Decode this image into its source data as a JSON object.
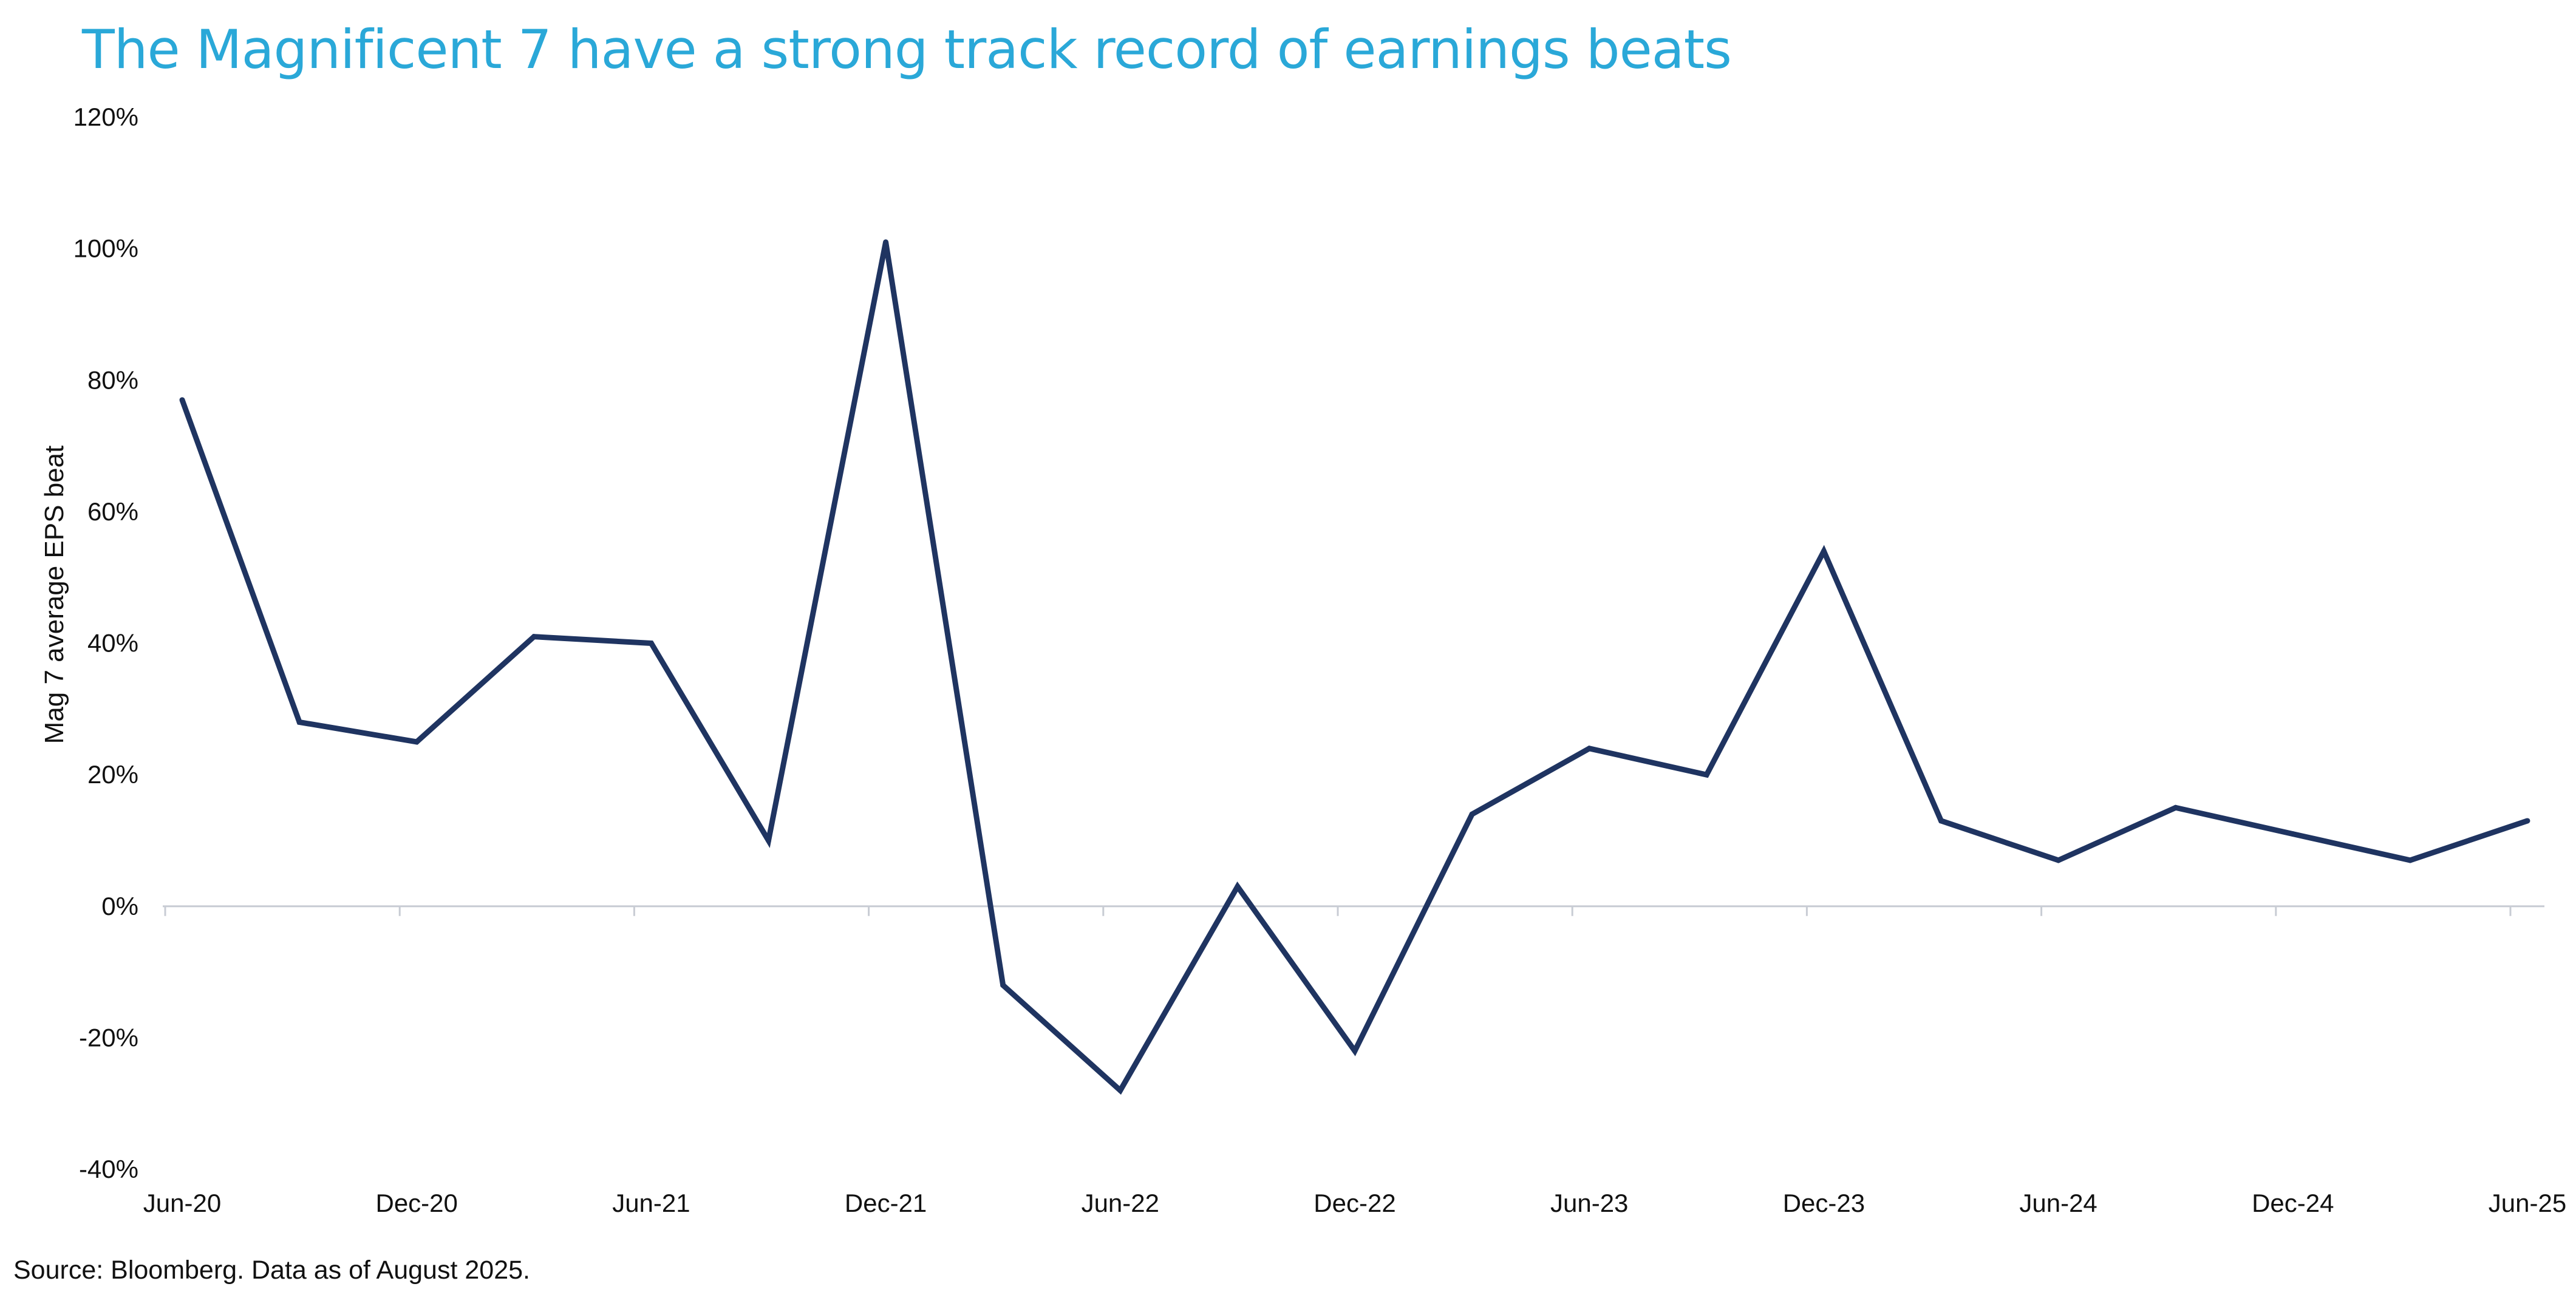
{
  "title": "The Magnificent 7 have a strong track record of earnings beats",
  "source": "Source: Bloomberg. Data as of August 2025.",
  "colors": {
    "title": "#2aa8d8",
    "line": "#1f3461",
    "axis": "#c8ccd4"
  },
  "chart_data": {
    "type": "line",
    "title": "The Magnificent 7 have a strong track record of earnings beats",
    "xlabel": "",
    "ylabel": "Mag 7 average EPS beat",
    "ylim": [
      -40,
      120
    ],
    "yticks": [
      -40,
      -20,
      0,
      20,
      40,
      60,
      80,
      100,
      120
    ],
    "ytick_labels": [
      "-40%",
      "-20%",
      "0%",
      "20%",
      "40%",
      "60%",
      "80%",
      "100%",
      "120%"
    ],
    "x": [
      "Jun-20",
      "Sep-20",
      "Dec-20",
      "Mar-21",
      "Jun-21",
      "Sep-21",
      "Dec-21",
      "Mar-22",
      "Jun-22",
      "Sep-22",
      "Dec-22",
      "Mar-23",
      "Jun-23",
      "Sep-23",
      "Dec-23",
      "Mar-24",
      "Jun-24",
      "Sep-24",
      "Dec-24",
      "Mar-25",
      "Jun-25"
    ],
    "xtick_labels": [
      "Jun-20",
      "Dec-20",
      "Jun-21",
      "Dec-21",
      "Jun-22",
      "Dec-22",
      "Jun-23",
      "Dec-23",
      "Jun-24",
      "Dec-24",
      "Jun-25"
    ],
    "series": [
      {
        "values": [
          77,
          28,
          25,
          41,
          40,
          10,
          101,
          -12,
          -28,
          3,
          -22,
          14,
          24,
          20,
          54,
          13,
          7,
          15,
          11,
          7,
          13
        ]
      }
    ],
    "grid": false,
    "legend": "none"
  }
}
